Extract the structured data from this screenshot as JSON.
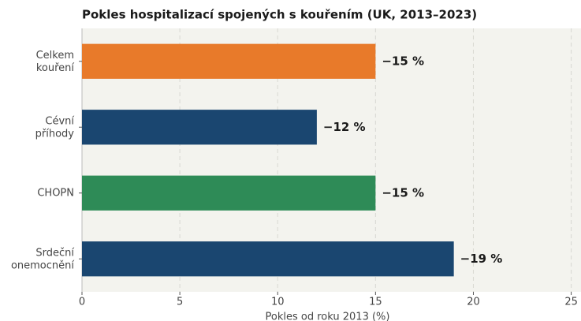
{
  "chart_data": {
    "type": "hbar",
    "title": "Pokles hospitalizací spojených s kouřením (UK, 2013–2023)",
    "x_label": "Pokles od roku 2013 (%)",
    "categories": [
      "Celkem\nkouření",
      "Cévní\npříhody",
      "CHOPN",
      "Srdeční\nonemocnění"
    ],
    "values": [
      15,
      12,
      15,
      19
    ],
    "value_labels": [
      "−15 %",
      "−12 %",
      "−15 %",
      "−19 %"
    ],
    "colors": [
      "#e87a2a",
      "#1a4670",
      "#2e8b57",
      "#1a4670"
    ],
    "xlim": [
      0,
      25.5
    ],
    "xticks": [
      0,
      5,
      10,
      15,
      20,
      25
    ],
    "grid": true
  }
}
